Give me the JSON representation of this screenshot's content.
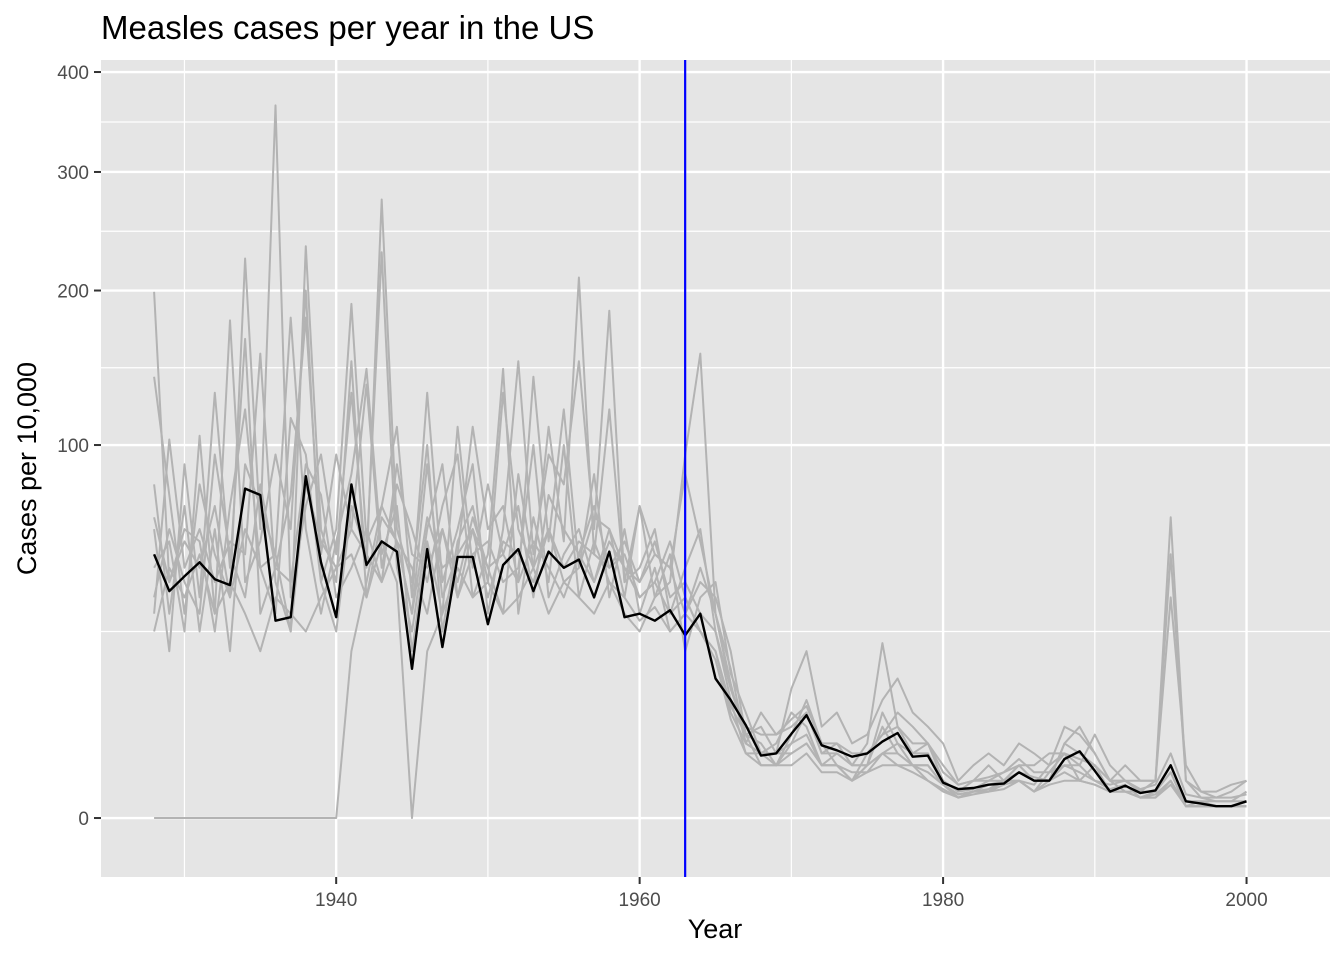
{
  "chart_data": {
    "type": "line",
    "title": "Measles cases per year in the US",
    "xlabel": "Year",
    "ylabel": "Cases per 10,000",
    "xlim": [
      1924.5,
      2005.5
    ],
    "ylim": [
      -2.5,
      413
    ],
    "y_scale": "sqrt",
    "x_ticks": [
      1940,
      1960,
      1980,
      2000
    ],
    "y_ticks": [
      0,
      100,
      200,
      300,
      400
    ],
    "grid": true,
    "vertical_line": {
      "x": 1963,
      "color": "#0000ff"
    },
    "colors": {
      "states": "#b3b3b3",
      "average": "#000000",
      "panel": "#e5e5e5",
      "grid": "#ffffff"
    },
    "series": [
      {
        "kind": "average",
        "x_start": 1928,
        "values": [
          50,
          37,
          42,
          47,
          41,
          39,
          78,
          75,
          28,
          29,
          84,
          47,
          29,
          80,
          46,
          55,
          51,
          16,
          52,
          21,
          49,
          49,
          27,
          46,
          52,
          37,
          51,
          45,
          48,
          35,
          51,
          29,
          30,
          28,
          31,
          24,
          30,
          14,
          10,
          6.2,
          2.8,
          3.0,
          5.1,
          7.6,
          3.8,
          3.3,
          2.7,
          3.0,
          4.2,
          5.2,
          2.7,
          2.8,
          0.9,
          0.6,
          0.65,
          0.8,
          0.85,
          1.5,
          1.0,
          1.0,
          2.5,
          3.2,
          1.6,
          0.5,
          0.75,
          0.45,
          0.55,
          2.0,
          0.2,
          0.15,
          0.1,
          0.1,
          0.2
        ]
      },
      {
        "kind": "state",
        "x_start": 1928,
        "values": [
          199,
          40,
          60,
          55,
          25,
          70,
          120,
          45,
          30,
          115,
          95,
          40,
          60,
          190,
          55,
          70,
          110,
          35,
          130,
          40,
          60,
          90,
          30,
          60,
          150,
          50,
          95,
          80,
          150,
          60,
          185,
          40,
          45,
          60,
          30,
          45,
          60,
          25,
          12,
          5,
          6,
          3,
          12,
          20,
          6,
          8,
          4,
          5,
          10,
          14,
          8,
          6,
          4,
          1,
          2,
          3,
          2,
          4,
          3,
          2,
          6,
          5,
          3,
          1,
          2,
          1,
          1,
          50,
          1,
          0.5,
          0.3,
          0.5,
          1
        ]
      },
      {
        "kind": "state",
        "x_start": 1928,
        "values": [
          140,
          75,
          30,
          80,
          50,
          35,
          225,
          60,
          365,
          35,
          70,
          95,
          50,
          130,
          45,
          275,
          60,
          40,
          100,
          25,
          55,
          70,
          40,
          130,
          60,
          45,
          110,
          55,
          210,
          50,
          120,
          40,
          70,
          35,
          40,
          95,
          155,
          30,
          16,
          4,
          8,
          5,
          6,
          8,
          3,
          4,
          2,
          4,
          22,
          6,
          3,
          4,
          2,
          0.8,
          1,
          1,
          1.5,
          2,
          1,
          1,
          4,
          6,
          3,
          1,
          1,
          1,
          1,
          65,
          1,
          0.3,
          0.2,
          0.2,
          0.5
        ]
      },
      {
        "kind": "state",
        "x_start": 1928,
        "values": [
          30,
          103,
          45,
          60,
          40,
          55,
          50,
          155,
          40,
          25,
          235,
          60,
          40,
          150,
          35,
          65,
          55,
          30,
          90,
          35,
          50,
          110,
          60,
          70,
          40,
          140,
          55,
          120,
          45,
          65,
          60,
          35,
          70,
          50,
          45,
          30,
          40,
          35,
          20,
          5,
          4,
          2,
          5,
          10,
          4,
          2,
          1,
          3,
          5,
          8,
          6,
          4,
          1,
          0.5,
          1,
          2,
          1,
          2,
          2,
          3,
          3,
          2,
          5,
          2,
          1,
          0.5,
          1,
          35,
          2,
          0.5,
          0.5,
          0.8,
          1
        ]
      },
      {
        "kind": "state",
        "x_start": 1928,
        "values": [
          60,
          20,
          90,
          35,
          130,
          45,
          165,
          30,
          45,
          75,
          180,
          50,
          95,
          60,
          135,
          45,
          80,
          60,
          40,
          70,
          95,
          35,
          50,
          145,
          30,
          65,
          40,
          100,
          35,
          55,
          40,
          30,
          25,
          35,
          50,
          20,
          35,
          40,
          15,
          8,
          3,
          4,
          8,
          6,
          2,
          3,
          2,
          2,
          6,
          3,
          2,
          1.5,
          0.8,
          0.3,
          0.5,
          0.6,
          1,
          1,
          0.5,
          1.5,
          2,
          2,
          1,
          0.6,
          0.8,
          0.3,
          0.5,
          1.5,
          0.1,
          0.1,
          0.1,
          0.1,
          0.1
        ]
      },
      {
        "kind": "state",
        "x_start": 1928,
        "values": [
          45,
          55,
          25,
          105,
          30,
          178,
          40,
          55,
          95,
          60,
          200,
          40,
          25,
          70,
          50,
          230,
          45,
          25,
          60,
          90,
          35,
          60,
          45,
          30,
          85,
          45,
          60,
          40,
          45,
          85,
          35,
          60,
          30,
          45,
          25,
          30,
          45,
          30,
          13,
          4,
          3,
          3,
          4,
          8,
          3,
          3,
          2,
          2,
          8,
          4,
          2,
          2,
          0.8,
          0.4,
          0.5,
          0.5,
          1,
          2,
          1,
          1,
          4,
          3,
          2,
          0.5,
          0.5,
          0.3,
          0.4,
          1,
          0.1,
          0.1,
          0.1,
          0.1,
          0.2
        ]
      },
      {
        "kind": "state",
        "x_start": 1928,
        "values": [
          80,
          30,
          70,
          25,
          60,
          20,
          90,
          70,
          50,
          180,
          60,
          30,
          55,
          85,
          145,
          50,
          70,
          20,
          55,
          30,
          110,
          45,
          80,
          50,
          70,
          35,
          75,
          60,
          50,
          70,
          45,
          50,
          35,
          40,
          55,
          35,
          25,
          20,
          9,
          5,
          2,
          2,
          4,
          5,
          2,
          2,
          1,
          2,
          3,
          4,
          3,
          3,
          1,
          0.5,
          0.6,
          1,
          1,
          1,
          0.8,
          2,
          3,
          1,
          2,
          1,
          0.5,
          0.5,
          0.5,
          2,
          0.2,
          0.2,
          0.2,
          0.2,
          0.2
        ]
      },
      {
        "kind": "state",
        "x_start": 1928,
        "values": [
          35,
          60,
          40,
          30,
          95,
          50,
          35,
          80,
          45,
          40,
          90,
          75,
          35,
          45,
          60,
          40,
          90,
          50,
          45,
          60,
          35,
          50,
          55,
          40,
          45,
          100,
          35,
          50,
          60,
          40,
          55,
          45,
          40,
          55,
          35,
          40,
          30,
          25,
          10,
          3,
          3,
          3,
          3,
          4,
          2,
          2,
          1.5,
          1.5,
          3,
          3,
          2,
          2,
          0.8,
          0.4,
          0.5,
          0.8,
          1,
          1.5,
          1.2,
          1,
          2,
          1.5,
          1,
          0.8,
          1,
          0.5,
          0.5,
          1.5,
          0.1,
          0.2,
          0.1,
          0.1,
          0.1
        ]
      },
      {
        "kind": "state",
        "x_start": 1928,
        "values": [
          0,
          0,
          0,
          0,
          0,
          0,
          0,
          0,
          0,
          0,
          0,
          0,
          0,
          20,
          40,
          70,
          55,
          45,
          30,
          60,
          40,
          65,
          45,
          50,
          40,
          55,
          45,
          35,
          50,
          40,
          60,
          45,
          35,
          40,
          30,
          35,
          25,
          20,
          8,
          4,
          3,
          2,
          3,
          4,
          2,
          2,
          1,
          2,
          3,
          2,
          2,
          1,
          0.6,
          0.3,
          0.5,
          0.5,
          0.8,
          1,
          0.5,
          1,
          1.5,
          1,
          0.8,
          0.5,
          0.5,
          0.3,
          0.3,
          1,
          0.1,
          0.1,
          0.1,
          0.1,
          0.1
        ]
      },
      {
        "kind": "state",
        "x_start": 1928,
        "values": [
          25,
          45,
          35,
          50,
          30,
          40,
          30,
          20,
          35,
          30,
          25,
          35,
          45,
          50,
          35,
          55,
          40,
          0,
          20,
          30,
          45,
          35,
          40,
          30,
          35,
          45,
          30,
          40,
          35,
          30,
          40,
          35,
          28,
          32,
          25,
          30,
          25,
          18,
          7,
          3,
          2,
          2,
          2,
          3,
          1.5,
          1.5,
          1,
          1.5,
          2,
          2,
          1.5,
          1,
          0.5,
          0.3,
          0.4,
          0.5,
          0.6,
          1,
          0.5,
          0.8,
          1,
          1,
          0.8,
          0.5,
          0.5,
          0.3,
          0.3,
          0.8,
          0.1,
          0.1,
          0.1,
          0.1,
          0.1
        ]
      },
      {
        "kind": "state",
        "x_start": 1928,
        "values": [
          65,
          40,
          55,
          45,
          70,
          35,
          60,
          45,
          50,
          25,
          80,
          55,
          45,
          60,
          50,
          40,
          55,
          30,
          65,
          45,
          50,
          60,
          35,
          55,
          50,
          40,
          60,
          45,
          55,
          50,
          45,
          55,
          40,
          50,
          45,
          85,
          55,
          30,
          12,
          6,
          5,
          5,
          7,
          9,
          4,
          4,
          3,
          3,
          5,
          6,
          4,
          4,
          1.5,
          0.8,
          1,
          1.2,
          1.5,
          2.5,
          1.5,
          1.5,
          3,
          2.5,
          2,
          1,
          1,
          0.6,
          0.8,
          3,
          0.4,
          0.3,
          0.3,
          0.3,
          0.4
        ]
      }
    ]
  }
}
